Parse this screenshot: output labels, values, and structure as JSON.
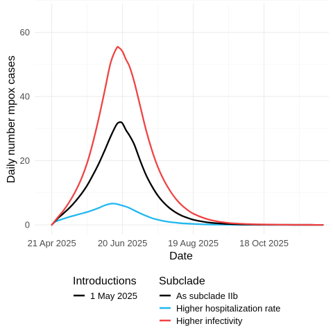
{
  "chart_data": {
    "type": "line",
    "xlabel": "Date",
    "ylabel": "Daily number mpox cases",
    "x_ticks": [
      "21 Apr 2025",
      "20 Jun 2025",
      "19 Aug 2025",
      "18 Oct 2025"
    ],
    "x_tick_days": [
      0,
      60,
      120,
      180
    ],
    "y_ticks": [
      0,
      20,
      40,
      60
    ],
    "ylim": [
      -3,
      69
    ],
    "xlim": [
      -14.5,
      235
    ],
    "grid": true,
    "legend_position": "bottom",
    "legend_introductions": {
      "title": "Introductions",
      "entries": [
        {
          "label": "1 May 2025",
          "color": "#000000"
        }
      ]
    },
    "legend_subclade": {
      "title": "Subclade",
      "entries": [
        {
          "label": "As subclade IIb",
          "color": "#000000"
        },
        {
          "label": "Higher hospitalization rate",
          "color": "#1fb8f0"
        },
        {
          "label": "Higher infectivity",
          "color": "#ef4444"
        }
      ]
    },
    "series": [
      {
        "name": "As subclade IIb",
        "color": "#000000",
        "x": [
          0,
          5,
          10,
          15,
          20,
          25,
          30,
          35,
          40,
          45,
          50,
          55,
          58,
          60,
          63,
          66,
          70,
          75,
          80,
          85,
          90,
          95,
          100,
          105,
          110,
          115,
          120,
          130,
          140,
          150,
          160,
          170,
          180,
          190,
          200,
          210,
          220,
          230
        ],
        "values": [
          0,
          2.0,
          3.6,
          5.3,
          7.3,
          9.6,
          12.3,
          15.6,
          19.2,
          23.3,
          27.6,
          31.3,
          32.0,
          31.6,
          29.5,
          27.8,
          25.0,
          20.0,
          15.5,
          12.0,
          9.1,
          6.9,
          5.2,
          3.9,
          2.9,
          2.2,
          1.6,
          0.9,
          0.5,
          0.27,
          0.15,
          0.08,
          0.05,
          0.03,
          0.02,
          0.01,
          0.01,
          0.0
        ]
      },
      {
        "name": "Higher hospitalization rate",
        "color": "#1fb8f0",
        "x": [
          0,
          3,
          10,
          15,
          20,
          25,
          30,
          35,
          40,
          45,
          50,
          53,
          55,
          58,
          60,
          65,
          70,
          75,
          80,
          85,
          90,
          95,
          100,
          105,
          110,
          120,
          130,
          140,
          150,
          160,
          170,
          180,
          190,
          200,
          210,
          220,
          230
        ],
        "values": [
          0,
          1.0,
          1.9,
          2.5,
          3.0,
          3.5,
          4.0,
          4.6,
          5.3,
          6.1,
          6.6,
          6.6,
          6.5,
          6.2,
          6.0,
          5.4,
          4.5,
          3.6,
          2.8,
          2.1,
          1.6,
          1.2,
          0.9,
          0.7,
          0.5,
          0.3,
          0.15,
          0.08,
          0.05,
          0.03,
          0.02,
          0.01,
          0.01,
          0.0,
          0.0,
          0.0,
          0.0
        ]
      },
      {
        "name": "Higher infectivity",
        "color": "#ef4444",
        "x": [
          0,
          5,
          10,
          15,
          20,
          25,
          30,
          35,
          40,
          45,
          50,
          55,
          57,
          60,
          63,
          66,
          70,
          75,
          80,
          85,
          90,
          95,
          100,
          105,
          110,
          115,
          120,
          130,
          140,
          150,
          160,
          170,
          180,
          190,
          200,
          210,
          220,
          230
        ],
        "values": [
          0,
          2.3,
          4.5,
          7.2,
          10.4,
          14.3,
          19.3,
          25.8,
          33.5,
          42.0,
          50.6,
          55.1,
          55.2,
          54.0,
          51.5,
          49.3,
          44.5,
          37.0,
          29.5,
          23.2,
          18.0,
          14.0,
          10.8,
          8.2,
          6.2,
          4.7,
          3.5,
          2.0,
          1.1,
          0.6,
          0.35,
          0.2,
          0.12,
          0.07,
          0.04,
          0.02,
          0.01,
          0.0
        ]
      }
    ]
  }
}
